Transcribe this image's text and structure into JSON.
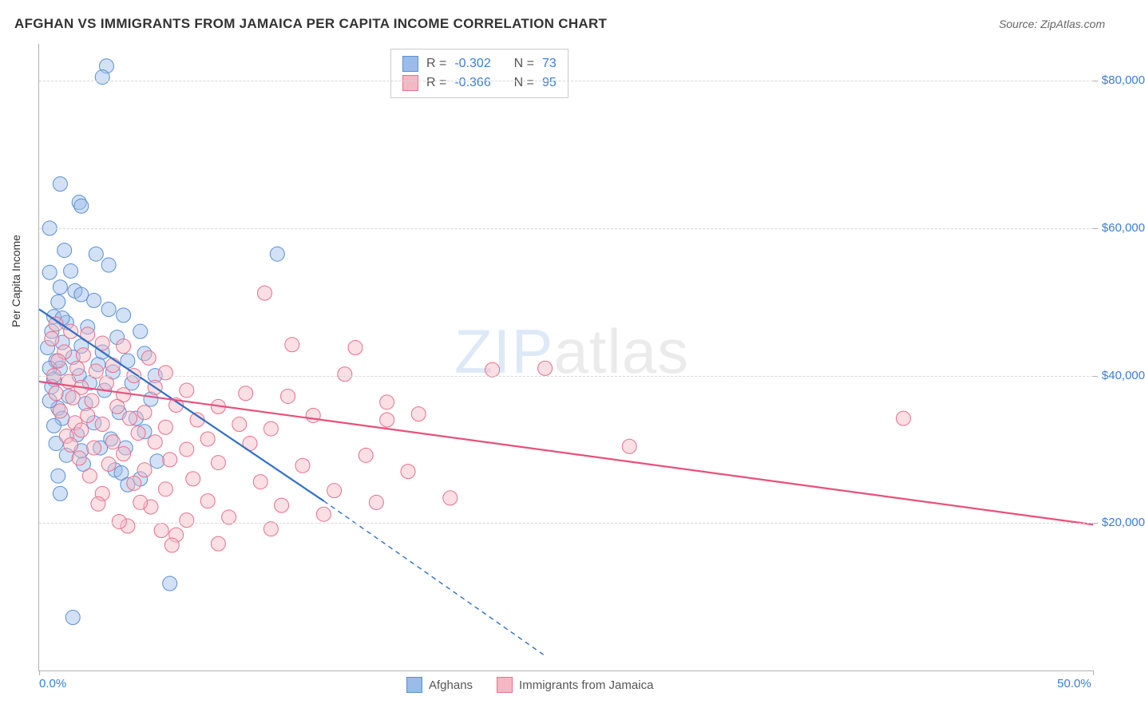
{
  "title": "AFGHAN VS IMMIGRANTS FROM JAMAICA PER CAPITA INCOME CORRELATION CHART",
  "source_label": "Source: ",
  "source_name": "ZipAtlas.com",
  "ylabel": "Per Capita Income",
  "watermark_bold": "ZIP",
  "watermark_light": "atlas",
  "chart": {
    "type": "scatter",
    "xlim": [
      0,
      50
    ],
    "ylim": [
      0,
      85000
    ],
    "xtick_labels": {
      "0": "0.0%",
      "50": "50.0%"
    },
    "yticks": [
      20000,
      40000,
      60000,
      80000
    ],
    "ytick_labels": [
      "$20,000",
      "$40,000",
      "$60,000",
      "$80,000"
    ],
    "grid_color": "#d8d8d8",
    "axis_color": "#b0b0b0",
    "tick_label_color": "#3b7dd8",
    "background_color": "#ffffff",
    "marker_radius": 9,
    "marker_opacity": 0.45,
    "line_width": 2.2,
    "series": [
      {
        "name": "Afghans",
        "color_fill": "#9bbce8",
        "color_stroke": "#5a8fd6",
        "line_color": "#2f6fc7",
        "R": "-0.302",
        "N": "73",
        "trend": {
          "x1": 0,
          "y1": 49000,
          "x2": 13.5,
          "y2": 23000,
          "dash_x2": 24,
          "dash_y2": 2000
        },
        "points": [
          [
            3.2,
            82000
          ],
          [
            3.0,
            80500
          ],
          [
            1.0,
            66000
          ],
          [
            1.9,
            63500
          ],
          [
            2.0,
            63000
          ],
          [
            0.5,
            60000
          ],
          [
            1.2,
            57000
          ],
          [
            2.7,
            56500
          ],
          [
            3.3,
            55000
          ],
          [
            0.5,
            54000
          ],
          [
            1.0,
            52000
          ],
          [
            1.7,
            51500
          ],
          [
            2.0,
            51000
          ],
          [
            0.9,
            50000
          ],
          [
            3.3,
            49000
          ],
          [
            4.0,
            48200
          ],
          [
            0.7,
            48000
          ],
          [
            1.3,
            47200
          ],
          [
            2.3,
            46600
          ],
          [
            0.6,
            46000
          ],
          [
            4.8,
            46000
          ],
          [
            3.7,
            45200
          ],
          [
            1.1,
            44500
          ],
          [
            2.0,
            44000
          ],
          [
            0.4,
            43800
          ],
          [
            3.0,
            43200
          ],
          [
            11.3,
            56500
          ],
          [
            5.0,
            43000
          ],
          [
            1.6,
            42500
          ],
          [
            0.8,
            42000
          ],
          [
            4.2,
            42000
          ],
          [
            2.8,
            41500
          ],
          [
            1.0,
            41000
          ],
          [
            0.5,
            41000
          ],
          [
            3.5,
            40500
          ],
          [
            5.5,
            40000
          ],
          [
            1.9,
            40000
          ],
          [
            0.7,
            39500
          ],
          [
            4.4,
            39000
          ],
          [
            2.4,
            39000
          ],
          [
            0.6,
            38500
          ],
          [
            3.1,
            38000
          ],
          [
            1.4,
            37200
          ],
          [
            5.3,
            36800
          ],
          [
            2.2,
            36200
          ],
          [
            0.9,
            35600
          ],
          [
            3.8,
            35000
          ],
          [
            1.1,
            34200
          ],
          [
            4.6,
            34200
          ],
          [
            2.6,
            33600
          ],
          [
            0.7,
            33200
          ],
          [
            5.0,
            32400
          ],
          [
            1.8,
            32000
          ],
          [
            3.4,
            31400
          ],
          [
            0.8,
            30800
          ],
          [
            2.9,
            30200
          ],
          [
            4.1,
            30200
          ],
          [
            1.3,
            29200
          ],
          [
            5.6,
            28400
          ],
          [
            2.1,
            28000
          ],
          [
            3.6,
            27200
          ],
          [
            0.9,
            26400
          ],
          [
            4.8,
            26000
          ],
          [
            3.9,
            26800
          ],
          [
            4.2,
            25200
          ],
          [
            1.0,
            24000
          ],
          [
            6.2,
            11800
          ],
          [
            1.6,
            7200
          ],
          [
            2.0,
            29800
          ],
          [
            0.5,
            36600
          ],
          [
            1.1,
            47800
          ],
          [
            2.6,
            50200
          ],
          [
            1.5,
            54200
          ]
        ]
      },
      {
        "name": "Immigrants from Jamaica",
        "color_fill": "#f4b8c4",
        "color_stroke": "#e7708d",
        "line_color": "#e94f7a",
        "R": "-0.366",
        "N": "95",
        "trend": {
          "x1": 0,
          "y1": 39200,
          "x2": 50,
          "y2": 19800
        },
        "points": [
          [
            0.8,
            47000
          ],
          [
            1.5,
            46000
          ],
          [
            2.3,
            45600
          ],
          [
            0.6,
            45000
          ],
          [
            3.0,
            44400
          ],
          [
            4.0,
            44000
          ],
          [
            1.2,
            43200
          ],
          [
            2.1,
            42800
          ],
          [
            5.2,
            42400
          ],
          [
            0.9,
            42000
          ],
          [
            3.5,
            41400
          ],
          [
            1.8,
            41000
          ],
          [
            2.7,
            40600
          ],
          [
            6.0,
            40400
          ],
          [
            0.7,
            40000
          ],
          [
            4.5,
            40000
          ],
          [
            10.7,
            51200
          ],
          [
            1.4,
            39200
          ],
          [
            3.2,
            39000
          ],
          [
            2.0,
            38400
          ],
          [
            5.5,
            38400
          ],
          [
            7.0,
            38000
          ],
          [
            0.8,
            37600
          ],
          [
            4.0,
            37400
          ],
          [
            12.0,
            44200
          ],
          [
            1.6,
            37000
          ],
          [
            2.5,
            36600
          ],
          [
            6.5,
            36000
          ],
          [
            3.7,
            35800
          ],
          [
            8.5,
            35800
          ],
          [
            1.0,
            35200
          ],
          [
            5.0,
            35000
          ],
          [
            2.3,
            34600
          ],
          [
            15.0,
            43800
          ],
          [
            4.3,
            34200
          ],
          [
            7.5,
            34000
          ],
          [
            1.7,
            33600
          ],
          [
            3.0,
            33400
          ],
          [
            9.5,
            33400
          ],
          [
            6.0,
            33000
          ],
          [
            2.0,
            32600
          ],
          [
            11.0,
            32800
          ],
          [
            4.7,
            32200
          ],
          [
            16.5,
            36400
          ],
          [
            1.3,
            31800
          ],
          [
            8.0,
            31400
          ],
          [
            3.5,
            31000
          ],
          [
            5.5,
            31000
          ],
          [
            13.0,
            34600
          ],
          [
            2.6,
            30200
          ],
          [
            18.0,
            34800
          ],
          [
            7.0,
            30000
          ],
          [
            4.0,
            29400
          ],
          [
            10.0,
            30800
          ],
          [
            1.9,
            28800
          ],
          [
            6.2,
            28600
          ],
          [
            15.5,
            29200
          ],
          [
            3.3,
            28000
          ],
          [
            21.5,
            40800
          ],
          [
            8.5,
            28200
          ],
          [
            5.0,
            27200
          ],
          [
            12.5,
            27800
          ],
          [
            2.4,
            26400
          ],
          [
            17.5,
            27000
          ],
          [
            7.3,
            26000
          ],
          [
            4.5,
            25400
          ],
          [
            28.0,
            30400
          ],
          [
            10.5,
            25600
          ],
          [
            6.0,
            24600
          ],
          [
            3.0,
            24000
          ],
          [
            14.0,
            24400
          ],
          [
            19.5,
            23400
          ],
          [
            8.0,
            23000
          ],
          [
            5.3,
            22200
          ],
          [
            24.0,
            41000
          ],
          [
            11.5,
            22400
          ],
          [
            16.0,
            22800
          ],
          [
            7.0,
            20400
          ],
          [
            4.2,
            19600
          ],
          [
            9.0,
            20800
          ],
          [
            13.5,
            21200
          ],
          [
            6.5,
            18400
          ],
          [
            41.0,
            34200
          ],
          [
            5.8,
            19000
          ],
          [
            8.5,
            17200
          ],
          [
            11.0,
            19200
          ],
          [
            3.8,
            20200
          ],
          [
            6.3,
            17000
          ],
          [
            4.8,
            22800
          ],
          [
            2.8,
            22600
          ],
          [
            1.5,
            30600
          ],
          [
            9.8,
            37600
          ],
          [
            14.5,
            40200
          ],
          [
            11.8,
            37200
          ],
          [
            16.5,
            34000
          ]
        ]
      }
    ],
    "legend": {
      "stats_label_R": "R =",
      "stats_label_N": "N ="
    }
  }
}
